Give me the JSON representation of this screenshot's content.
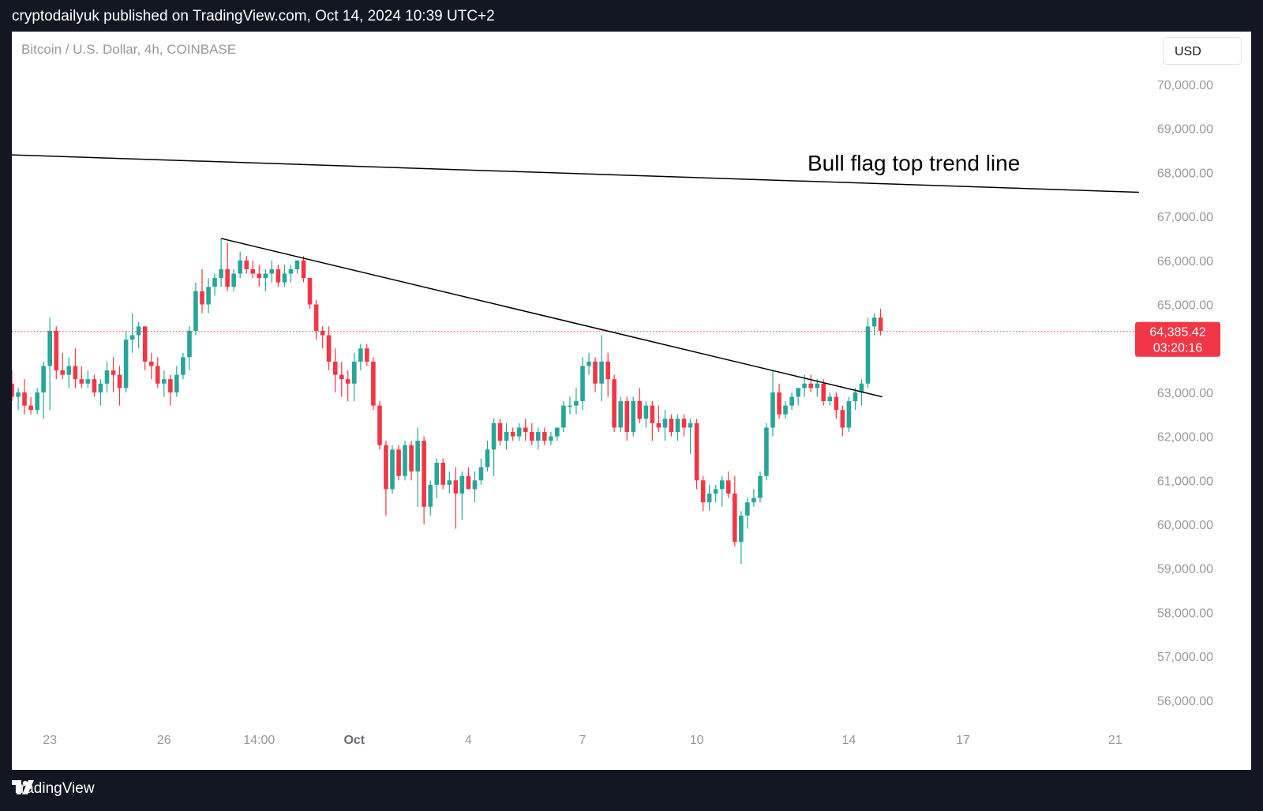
{
  "header": {
    "published": "cryptodailyuk published on TradingView.com, Oct 14, 2024 10:39 UTC+2"
  },
  "symbol": {
    "title": "Bitcoin / U.S. Dollar, 4h, COINBASE"
  },
  "currency": {
    "label": "USD"
  },
  "footer": {
    "brand": "TradingView"
  },
  "colors": {
    "up": "#26a69a",
    "down": "#f23645",
    "trend": "#000000",
    "price_line": "#f23645",
    "axis_text": "#9598a1"
  },
  "chart_data": {
    "type": "candlestick",
    "title": "Bitcoin / U.S. Dollar, 4h, COINBASE",
    "annotation": "Bull flag top trend line",
    "ylim": [
      55500,
      70500
    ],
    "y_ticks": [
      "70,000.00",
      "69,000.00",
      "68,000.00",
      "67,000.00",
      "66,000.00",
      "65,000.00",
      "63,000.00",
      "62,000.00",
      "61,000.00",
      "60,000.00",
      "59,000.00",
      "58,000.00",
      "57,000.00",
      "56,000.00"
    ],
    "y_tick_values": [
      70000,
      69000,
      68000,
      67000,
      66000,
      65000,
      63000,
      62000,
      61000,
      60000,
      59000,
      58000,
      57000,
      56000
    ],
    "x_ticks": [
      {
        "label": "23",
        "pos": 4
      },
      {
        "label": "26",
        "pos": 16
      },
      {
        "label": "14:00",
        "pos": 26
      },
      {
        "label": "Oct",
        "pos": 36,
        "bold": true
      },
      {
        "label": "4",
        "pos": 48
      },
      {
        "label": "7",
        "pos": 60
      },
      {
        "label": "10",
        "pos": 72
      },
      {
        "label": "14",
        "pos": 88
      },
      {
        "label": "17",
        "pos": 100
      },
      {
        "label": "21",
        "pos": 116
      }
    ],
    "last_price": {
      "price": 64385.42,
      "label": "64,385.42",
      "countdown": "03:20:16"
    },
    "trend_lines": [
      {
        "name": "Bull flag top trend line",
        "from": [
          0,
          68400
        ],
        "to": [
          118.5,
          67550
        ]
      },
      {
        "name": "descending trend line",
        "from": [
          22,
          66500
        ],
        "to": [
          91.5,
          62900
        ]
      }
    ],
    "candles": [
      {
        "x": 0,
        "o": 63200,
        "h": 63500,
        "l": 62800,
        "c": 62900
      },
      {
        "x": 0.67,
        "o": 62900,
        "h": 63100,
        "l": 62600,
        "c": 63000
      },
      {
        "x": 1.33,
        "o": 63000,
        "h": 63300,
        "l": 62500,
        "c": 62700
      },
      {
        "x": 2,
        "o": 62700,
        "h": 62900,
        "l": 62500,
        "c": 62600
      },
      {
        "x": 2.67,
        "o": 62600,
        "h": 63100,
        "l": 62500,
        "c": 63000
      },
      {
        "x": 3.33,
        "o": 63000,
        "h": 63700,
        "l": 62400,
        "c": 63600
      },
      {
        "x": 4,
        "o": 63600,
        "h": 64700,
        "l": 62600,
        "c": 64400
      },
      {
        "x": 4.67,
        "o": 64400,
        "h": 64500,
        "l": 63300,
        "c": 63500
      },
      {
        "x": 5.33,
        "o": 63500,
        "h": 63900,
        "l": 63300,
        "c": 63400
      },
      {
        "x": 6,
        "o": 63400,
        "h": 63800,
        "l": 63100,
        "c": 63600
      },
      {
        "x": 6.67,
        "o": 63600,
        "h": 64000,
        "l": 63100,
        "c": 63300
      },
      {
        "x": 7.33,
        "o": 63300,
        "h": 63600,
        "l": 63100,
        "c": 63200
      },
      {
        "x": 8,
        "o": 63200,
        "h": 63500,
        "l": 63100,
        "c": 63300
      },
      {
        "x": 8.67,
        "o": 63300,
        "h": 63400,
        "l": 62900,
        "c": 63000
      },
      {
        "x": 9.33,
        "o": 63000,
        "h": 63300,
        "l": 62700,
        "c": 63200
      },
      {
        "x": 10,
        "o": 63200,
        "h": 63700,
        "l": 63000,
        "c": 63500
      },
      {
        "x": 10.67,
        "o": 63500,
        "h": 63800,
        "l": 63000,
        "c": 63400
      },
      {
        "x": 11.33,
        "o": 63400,
        "h": 63600,
        "l": 62700,
        "c": 63100
      },
      {
        "x": 12,
        "o": 63100,
        "h": 64400,
        "l": 63000,
        "c": 64200
      },
      {
        "x": 12.67,
        "o": 64200,
        "h": 64800,
        "l": 63900,
        "c": 64300
      },
      {
        "x": 13.33,
        "o": 64300,
        "h": 64600,
        "l": 64000,
        "c": 64500
      },
      {
        "x": 14,
        "o": 64500,
        "h": 64500,
        "l": 63500,
        "c": 63700
      },
      {
        "x": 14.67,
        "o": 63700,
        "h": 63900,
        "l": 63300,
        "c": 63600
      },
      {
        "x": 15.33,
        "o": 63600,
        "h": 63800,
        "l": 63100,
        "c": 63200
      },
      {
        "x": 16,
        "o": 63200,
        "h": 63500,
        "l": 62900,
        "c": 63300
      },
      {
        "x": 16.67,
        "o": 63300,
        "h": 63400,
        "l": 62700,
        "c": 63000
      },
      {
        "x": 17.33,
        "o": 63000,
        "h": 63600,
        "l": 62900,
        "c": 63400
      },
      {
        "x": 18,
        "o": 63400,
        "h": 63900,
        "l": 63300,
        "c": 63800
      },
      {
        "x": 18.67,
        "o": 63800,
        "h": 64500,
        "l": 63500,
        "c": 64400
      },
      {
        "x": 19.33,
        "o": 64400,
        "h": 65500,
        "l": 64300,
        "c": 65300
      },
      {
        "x": 20,
        "o": 65300,
        "h": 65800,
        "l": 64800,
        "c": 65000
      },
      {
        "x": 20.67,
        "o": 65000,
        "h": 65600,
        "l": 64800,
        "c": 65400
      },
      {
        "x": 21.33,
        "o": 65400,
        "h": 65700,
        "l": 65200,
        "c": 65600
      },
      {
        "x": 22,
        "o": 65600,
        "h": 66500,
        "l": 65400,
        "c": 65800
      },
      {
        "x": 22.67,
        "o": 65800,
        "h": 66400,
        "l": 65300,
        "c": 65400
      },
      {
        "x": 23.33,
        "o": 65400,
        "h": 65800,
        "l": 65300,
        "c": 65700
      },
      {
        "x": 24,
        "o": 65700,
        "h": 66200,
        "l": 65600,
        "c": 66000
      },
      {
        "x": 24.67,
        "o": 66000,
        "h": 66100,
        "l": 65700,
        "c": 65800
      },
      {
        "x": 25.33,
        "o": 65800,
        "h": 66000,
        "l": 65600,
        "c": 65700
      },
      {
        "x": 26,
        "o": 65700,
        "h": 65900,
        "l": 65400,
        "c": 65600
      },
      {
        "x": 26.67,
        "o": 65600,
        "h": 65800,
        "l": 65300,
        "c": 65700
      },
      {
        "x": 27.33,
        "o": 65700,
        "h": 66000,
        "l": 65500,
        "c": 65800
      },
      {
        "x": 28,
        "o": 65800,
        "h": 65900,
        "l": 65400,
        "c": 65500
      },
      {
        "x": 28.67,
        "o": 65500,
        "h": 65900,
        "l": 65400,
        "c": 65700
      },
      {
        "x": 29.33,
        "o": 65700,
        "h": 65900,
        "l": 65500,
        "c": 65800
      },
      {
        "x": 30,
        "o": 65800,
        "h": 66000,
        "l": 65700,
        "c": 66000
      },
      {
        "x": 30.67,
        "o": 66000,
        "h": 66100,
        "l": 65500,
        "c": 65600
      },
      {
        "x": 31.33,
        "o": 65600,
        "h": 65600,
        "l": 64900,
        "c": 65000
      },
      {
        "x": 32,
        "o": 65000,
        "h": 65100,
        "l": 64200,
        "c": 64400
      },
      {
        "x": 32.67,
        "o": 64400,
        "h": 64500,
        "l": 64000,
        "c": 64300
      },
      {
        "x": 33.33,
        "o": 64300,
        "h": 64500,
        "l": 63500,
        "c": 63700
      },
      {
        "x": 34,
        "o": 63700,
        "h": 64000,
        "l": 63000,
        "c": 63400
      },
      {
        "x": 34.67,
        "o": 63400,
        "h": 63700,
        "l": 62900,
        "c": 63300
      },
      {
        "x": 35.33,
        "o": 63300,
        "h": 63500,
        "l": 62800,
        "c": 63200
      },
      {
        "x": 36,
        "o": 63200,
        "h": 63900,
        "l": 62800,
        "c": 63700
      },
      {
        "x": 36.67,
        "o": 63700,
        "h": 64100,
        "l": 63500,
        "c": 64000
      },
      {
        "x": 37.33,
        "o": 64000,
        "h": 64100,
        "l": 63600,
        "c": 63700
      },
      {
        "x": 38,
        "o": 63700,
        "h": 63800,
        "l": 62600,
        "c": 62700
      },
      {
        "x": 38.67,
        "o": 62700,
        "h": 62800,
        "l": 61700,
        "c": 61800
      },
      {
        "x": 39.33,
        "o": 61800,
        "h": 61900,
        "l": 60200,
        "c": 60800
      },
      {
        "x": 40,
        "o": 60800,
        "h": 61800,
        "l": 60700,
        "c": 61700
      },
      {
        "x": 40.67,
        "o": 61700,
        "h": 61800,
        "l": 61000,
        "c": 61100
      },
      {
        "x": 41.33,
        "o": 61100,
        "h": 61900,
        "l": 61000,
        "c": 61800
      },
      {
        "x": 42,
        "o": 61800,
        "h": 61900,
        "l": 61000,
        "c": 61200
      },
      {
        "x": 42.67,
        "o": 61200,
        "h": 62200,
        "l": 60400,
        "c": 61900
      },
      {
        "x": 43.33,
        "o": 61900,
        "h": 62000,
        "l": 60000,
        "c": 60400
      },
      {
        "x": 44,
        "o": 60400,
        "h": 61000,
        "l": 60200,
        "c": 60900
      },
      {
        "x": 44.67,
        "o": 60900,
        "h": 61500,
        "l": 60600,
        "c": 61400
      },
      {
        "x": 45.33,
        "o": 61400,
        "h": 61500,
        "l": 60800,
        "c": 60900
      },
      {
        "x": 46,
        "o": 60900,
        "h": 61200,
        "l": 60700,
        "c": 61000
      },
      {
        "x": 46.67,
        "o": 61000,
        "h": 61300,
        "l": 59900,
        "c": 60700
      },
      {
        "x": 47.33,
        "o": 60700,
        "h": 61200,
        "l": 60100,
        "c": 61100
      },
      {
        "x": 48,
        "o": 61100,
        "h": 61300,
        "l": 60800,
        "c": 60800
      },
      {
        "x": 48.67,
        "o": 60800,
        "h": 61200,
        "l": 60500,
        "c": 61000
      },
      {
        "x": 49.33,
        "o": 61000,
        "h": 61500,
        "l": 60900,
        "c": 61300
      },
      {
        "x": 50,
        "o": 61300,
        "h": 61900,
        "l": 61200,
        "c": 61700
      },
      {
        "x": 50.67,
        "o": 61700,
        "h": 62400,
        "l": 61100,
        "c": 62300
      },
      {
        "x": 51.33,
        "o": 62300,
        "h": 62400,
        "l": 61800,
        "c": 61900
      },
      {
        "x": 52,
        "o": 61900,
        "h": 62300,
        "l": 61700,
        "c": 62100
      },
      {
        "x": 52.67,
        "o": 62100,
        "h": 62200,
        "l": 61900,
        "c": 62000
      },
      {
        "x": 53.33,
        "o": 62000,
        "h": 62300,
        "l": 61900,
        "c": 62200
      },
      {
        "x": 54,
        "o": 62200,
        "h": 62400,
        "l": 61900,
        "c": 62100
      },
      {
        "x": 54.67,
        "o": 62100,
        "h": 62300,
        "l": 61800,
        "c": 61900
      },
      {
        "x": 55.33,
        "o": 61900,
        "h": 62200,
        "l": 61700,
        "c": 62100
      },
      {
        "x": 56,
        "o": 62100,
        "h": 62200,
        "l": 61800,
        "c": 61900
      },
      {
        "x": 56.67,
        "o": 61900,
        "h": 62100,
        "l": 61800,
        "c": 62000
      },
      {
        "x": 57.33,
        "o": 62000,
        "h": 62200,
        "l": 61900,
        "c": 62200
      },
      {
        "x": 58,
        "o": 62200,
        "h": 62800,
        "l": 62100,
        "c": 62700
      },
      {
        "x": 58.67,
        "o": 62700,
        "h": 62900,
        "l": 62500,
        "c": 62700
      },
      {
        "x": 59.33,
        "o": 62700,
        "h": 63100,
        "l": 62500,
        "c": 62800
      },
      {
        "x": 60,
        "o": 62800,
        "h": 63800,
        "l": 62600,
        "c": 63600
      },
      {
        "x": 60.67,
        "o": 63600,
        "h": 63900,
        "l": 63400,
        "c": 63700
      },
      {
        "x": 61.33,
        "o": 63700,
        "h": 63800,
        "l": 63000,
        "c": 63200
      },
      {
        "x": 62,
        "o": 63200,
        "h": 64300,
        "l": 62800,
        "c": 63700
      },
      {
        "x": 62.67,
        "o": 63700,
        "h": 63900,
        "l": 62900,
        "c": 63300
      },
      {
        "x": 63.33,
        "o": 63300,
        "h": 63400,
        "l": 62100,
        "c": 62200
      },
      {
        "x": 64,
        "o": 62200,
        "h": 62900,
        "l": 62100,
        "c": 62800
      },
      {
        "x": 64.67,
        "o": 62800,
        "h": 62900,
        "l": 61900,
        "c": 62100
      },
      {
        "x": 65.33,
        "o": 62100,
        "h": 62900,
        "l": 62000,
        "c": 62800
      },
      {
        "x": 66,
        "o": 62800,
        "h": 63100,
        "l": 62300,
        "c": 62400
      },
      {
        "x": 66.67,
        "o": 62400,
        "h": 62800,
        "l": 62200,
        "c": 62700
      },
      {
        "x": 67.33,
        "o": 62700,
        "h": 62800,
        "l": 61900,
        "c": 62300
      },
      {
        "x": 68,
        "o": 62300,
        "h": 62700,
        "l": 62100,
        "c": 62200
      },
      {
        "x": 68.67,
        "o": 62200,
        "h": 62600,
        "l": 61900,
        "c": 62400
      },
      {
        "x": 69.33,
        "o": 62400,
        "h": 62500,
        "l": 62000,
        "c": 62100
      },
      {
        "x": 70,
        "o": 62100,
        "h": 62500,
        "l": 61900,
        "c": 62400
      },
      {
        "x": 70.67,
        "o": 62400,
        "h": 62500,
        "l": 62000,
        "c": 62200
      },
      {
        "x": 71.33,
        "o": 62200,
        "h": 62400,
        "l": 61600,
        "c": 62300
      },
      {
        "x": 72,
        "o": 62300,
        "h": 62400,
        "l": 60800,
        "c": 61000
      },
      {
        "x": 72.67,
        "o": 61000,
        "h": 61100,
        "l": 60300,
        "c": 60500
      },
      {
        "x": 73.33,
        "o": 60500,
        "h": 60900,
        "l": 60300,
        "c": 60700
      },
      {
        "x": 74,
        "o": 60700,
        "h": 60900,
        "l": 60500,
        "c": 60800
      },
      {
        "x": 74.67,
        "o": 60800,
        "h": 61100,
        "l": 60400,
        "c": 61000
      },
      {
        "x": 75.33,
        "o": 61000,
        "h": 61200,
        "l": 60600,
        "c": 60700
      },
      {
        "x": 76,
        "o": 60700,
        "h": 61100,
        "l": 59500,
        "c": 59600
      },
      {
        "x": 76.67,
        "o": 59600,
        "h": 60300,
        "l": 59100,
        "c": 60200
      },
      {
        "x": 77.33,
        "o": 60200,
        "h": 60600,
        "l": 59900,
        "c": 60500
      },
      {
        "x": 78,
        "o": 60500,
        "h": 60800,
        "l": 60400,
        "c": 60600
      },
      {
        "x": 78.67,
        "o": 60600,
        "h": 61200,
        "l": 60500,
        "c": 61100
      },
      {
        "x": 79.33,
        "o": 61100,
        "h": 62300,
        "l": 61000,
        "c": 62200
      },
      {
        "x": 80,
        "o": 62200,
        "h": 63500,
        "l": 62000,
        "c": 63000
      },
      {
        "x": 80.67,
        "o": 63000,
        "h": 63200,
        "l": 62400,
        "c": 62500
      },
      {
        "x": 81.33,
        "o": 62500,
        "h": 62800,
        "l": 62400,
        "c": 62700
      },
      {
        "x": 82,
        "o": 62700,
        "h": 63000,
        "l": 62600,
        "c": 62900
      },
      {
        "x": 82.67,
        "o": 62900,
        "h": 63100,
        "l": 62700,
        "c": 63100
      },
      {
        "x": 83.33,
        "o": 63100,
        "h": 63400,
        "l": 62900,
        "c": 63200
      },
      {
        "x": 84,
        "o": 63200,
        "h": 63400,
        "l": 63000,
        "c": 63100
      },
      {
        "x": 84.67,
        "o": 63100,
        "h": 63300,
        "l": 62900,
        "c": 63200
      },
      {
        "x": 85.33,
        "o": 63200,
        "h": 63300,
        "l": 62700,
        "c": 62800
      },
      {
        "x": 86,
        "o": 62800,
        "h": 63000,
        "l": 62700,
        "c": 62900
      },
      {
        "x": 86.67,
        "o": 62900,
        "h": 63000,
        "l": 62400,
        "c": 62600
      },
      {
        "x": 87.33,
        "o": 62600,
        "h": 62700,
        "l": 62000,
        "c": 62200
      },
      {
        "x": 88,
        "o": 62200,
        "h": 62900,
        "l": 62100,
        "c": 62800
      },
      {
        "x": 88.67,
        "o": 62800,
        "h": 63100,
        "l": 62600,
        "c": 63000
      },
      {
        "x": 89.33,
        "o": 63000,
        "h": 63300,
        "l": 62700,
        "c": 63200
      },
      {
        "x": 90,
        "o": 63200,
        "h": 64700,
        "l": 63100,
        "c": 64500
      },
      {
        "x": 90.67,
        "o": 64500,
        "h": 64800,
        "l": 64300,
        "c": 64700
      },
      {
        "x": 91.33,
        "o": 64700,
        "h": 64900,
        "l": 64300,
        "c": 64400
      }
    ]
  }
}
